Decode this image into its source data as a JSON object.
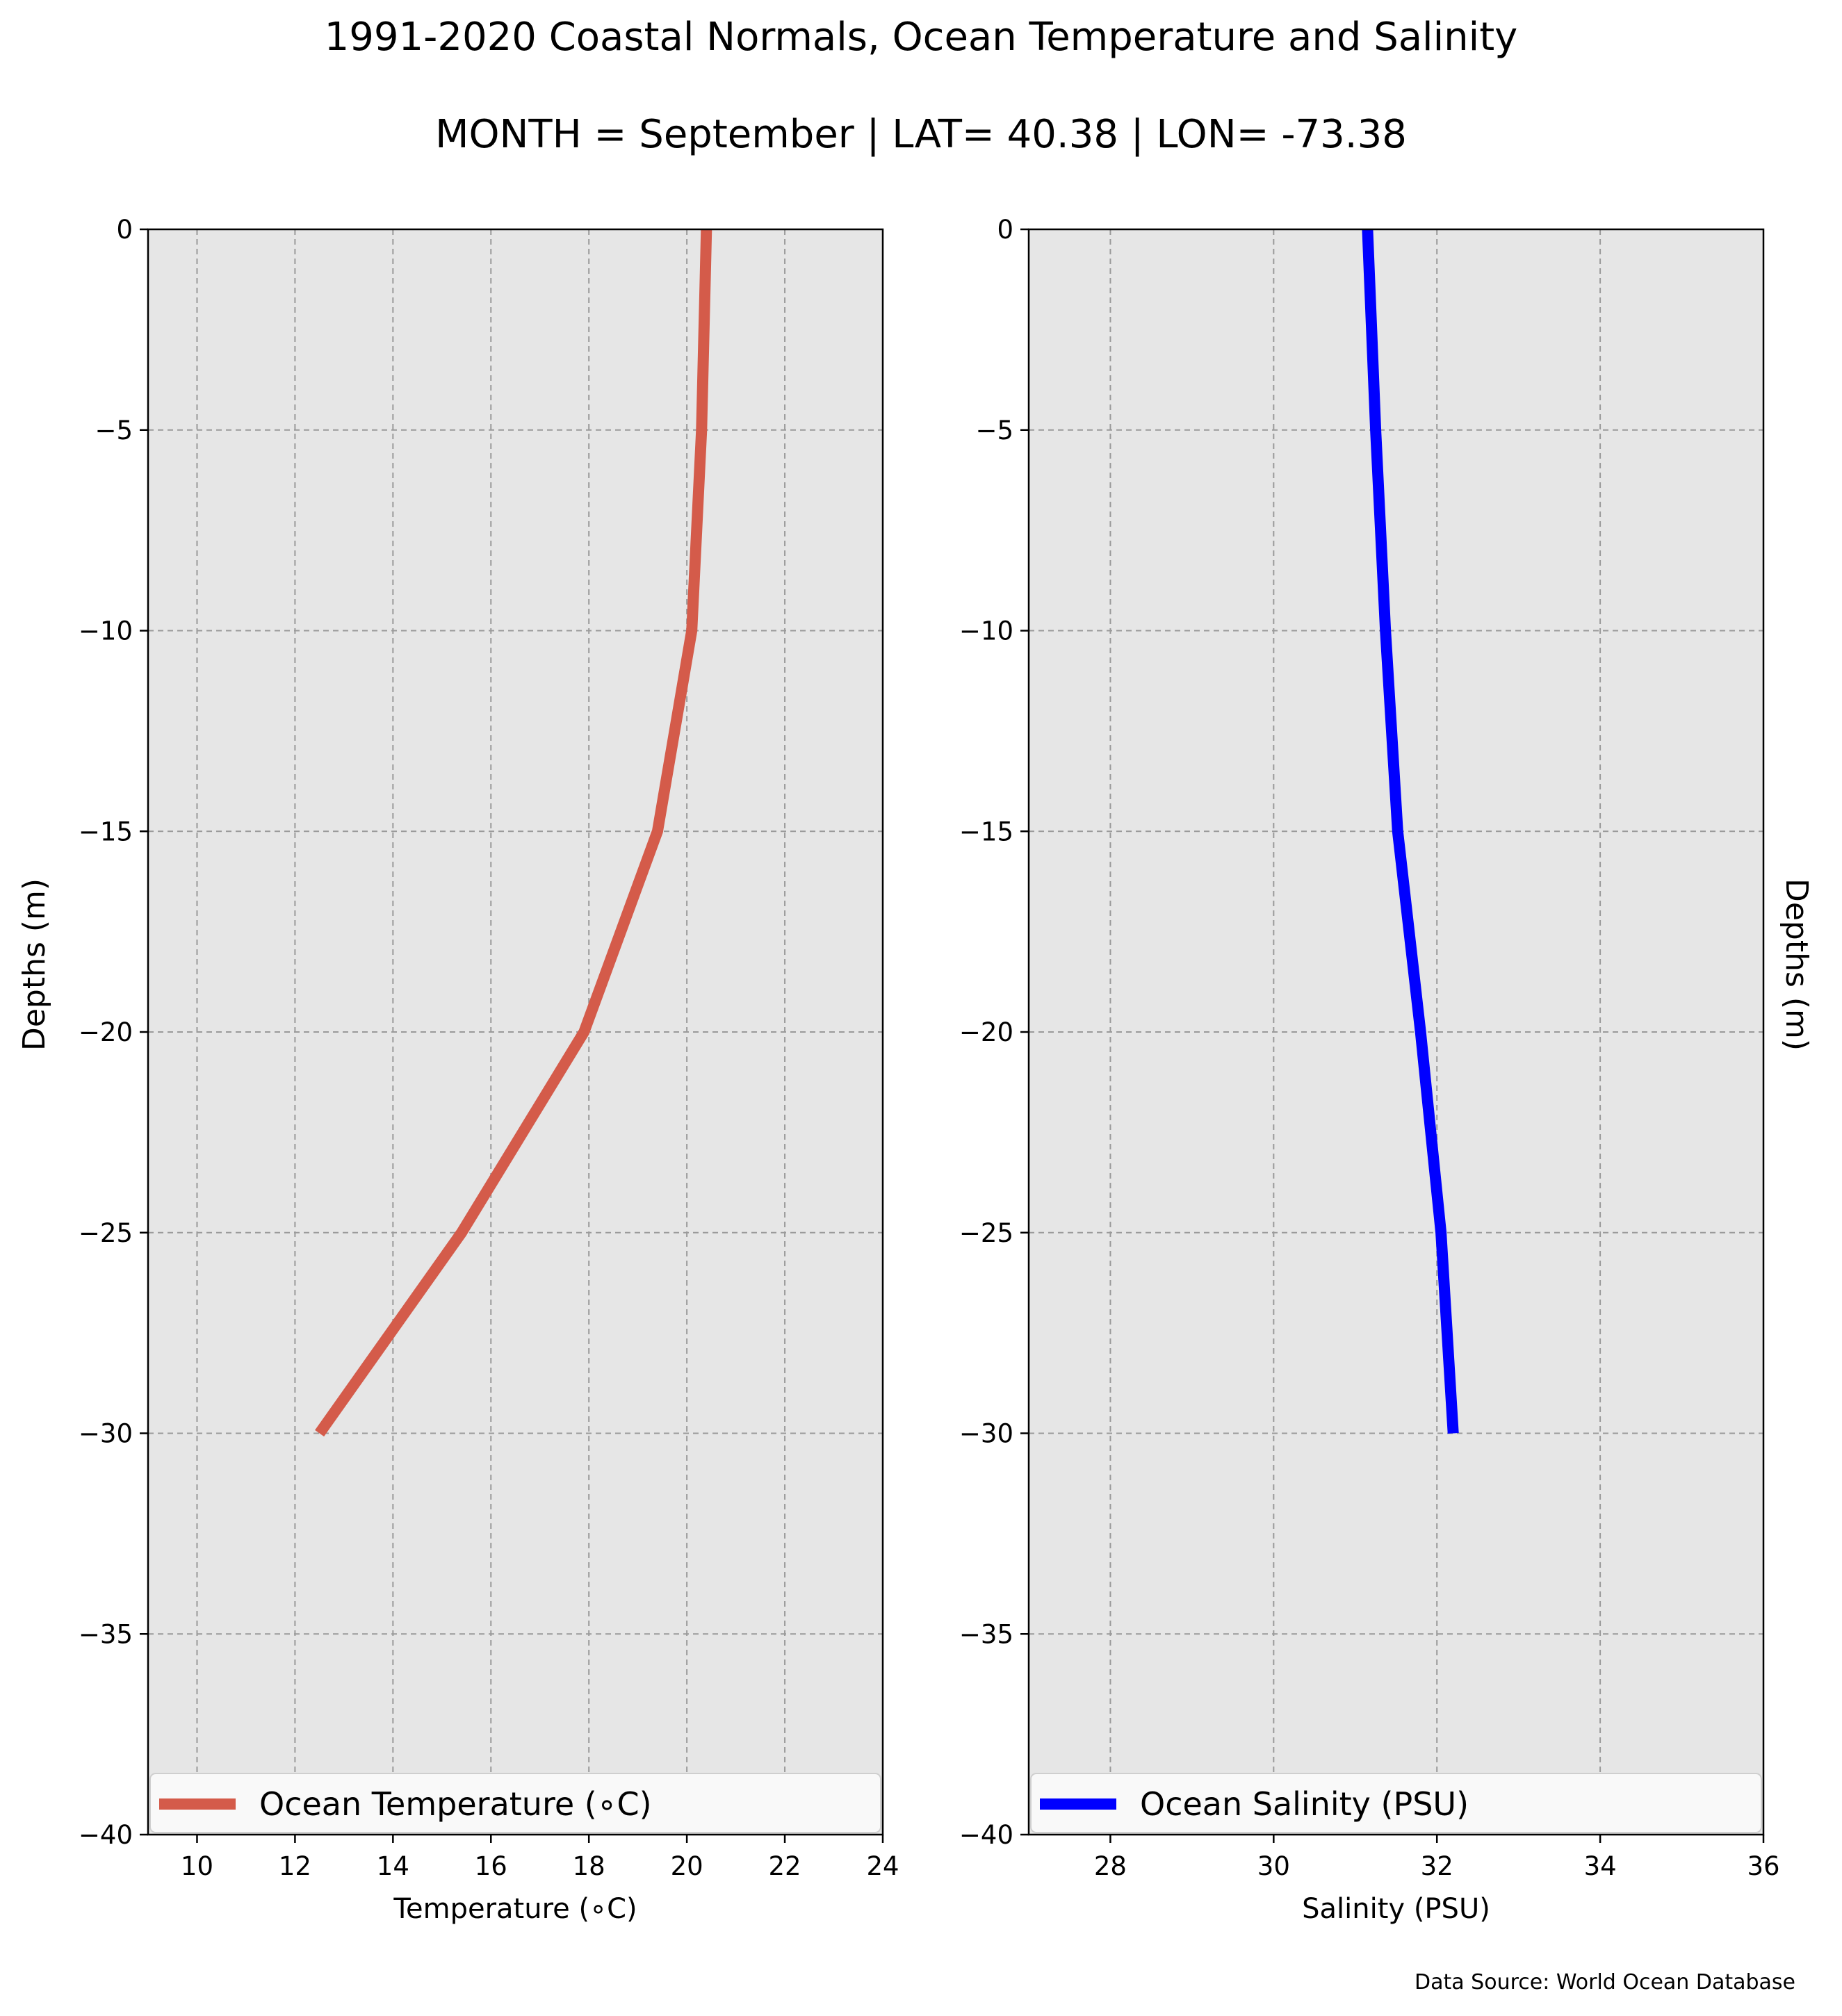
{
  "figure": {
    "title": "1991-2020 Coastal Normals, Ocean Temperature and Salinity",
    "subtitle": "MONTH = September | LAT= 40.38 | LON= -73.38",
    "source": "Data Source: World Ocean Database",
    "plot_background": "#e6e6e6"
  },
  "chart_data": [
    {
      "type": "line",
      "orientation": "depth-profile",
      "xlabel": "Temperature (∘C)",
      "ylabel": "Depths (m)",
      "ylabel_side": "left",
      "xlim": [
        9,
        24
      ],
      "ylim": [
        -40,
        0
      ],
      "xticks": [
        10,
        12,
        14,
        16,
        18,
        20,
        22,
        24
      ],
      "xtick_labels": [
        "10",
        "12",
        "14",
        "16",
        "18",
        "20",
        "22",
        "24"
      ],
      "yticks": [
        0,
        -5,
        -10,
        -15,
        -20,
        -25,
        -30,
        -35,
        -40
      ],
      "ytick_labels": [
        "0",
        "−5",
        "−10",
        "−15",
        "−20",
        "−25",
        "−30",
        "−35",
        "−40"
      ],
      "grid": true,
      "legend_position": "bottom",
      "series": [
        {
          "name": "Ocean Temperature (∘C)",
          "color": "#d45b4a",
          "x": [
            20.4,
            20.3,
            20.1,
            19.4,
            17.9,
            15.4,
            12.5
          ],
          "y": [
            0,
            -5,
            -10,
            -15,
            -20,
            -25,
            -30
          ]
        }
      ]
    },
    {
      "type": "line",
      "orientation": "depth-profile",
      "xlabel": "Salinity (PSU)",
      "ylabel": "Depths (m)",
      "ylabel_side": "right",
      "xlim": [
        27,
        36
      ],
      "ylim": [
        -40,
        0
      ],
      "xticks": [
        28,
        30,
        32,
        34,
        36
      ],
      "xtick_labels": [
        "28",
        "30",
        "32",
        "34",
        "36"
      ],
      "yticks": [
        0,
        -5,
        -10,
        -15,
        -20,
        -25,
        -30,
        -35,
        -40
      ],
      "ytick_labels": [
        "0",
        "−5",
        "−10",
        "−15",
        "−20",
        "−25",
        "−30",
        "−35",
        "−40"
      ],
      "grid": true,
      "legend_position": "bottom",
      "series": [
        {
          "name": "Ocean Salinity (PSU)",
          "color": "#0000ff",
          "x": [
            31.15,
            31.25,
            31.37,
            31.52,
            31.8,
            32.05,
            32.2
          ],
          "y": [
            0,
            -5,
            -10,
            -15,
            -20,
            -25,
            -30
          ]
        }
      ]
    }
  ]
}
